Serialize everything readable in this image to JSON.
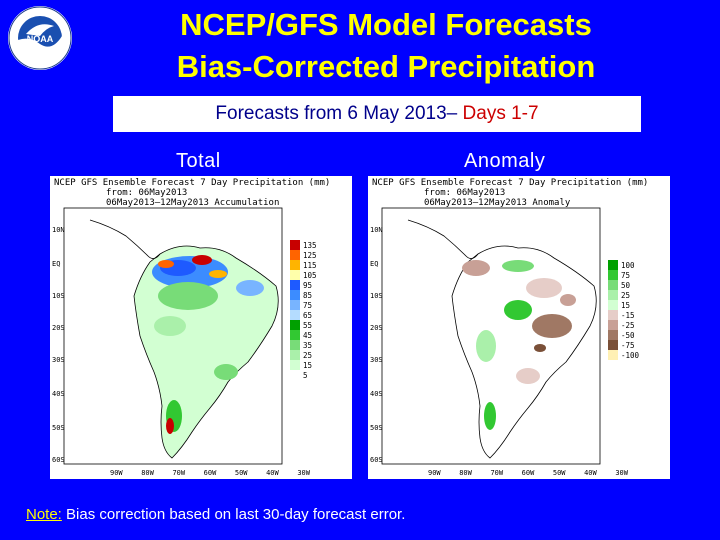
{
  "title": {
    "line1": "NCEP/GFS Model Forecasts",
    "line2": "Bias-Corrected Precipitation"
  },
  "subtitle": {
    "prefix": "Forecasts from 6 May 2013– ",
    "accent": "Days 1-7"
  },
  "labels": {
    "total": "Total",
    "anomaly": "Anomaly"
  },
  "total_panel": {
    "header": "NCEP GFS Ensemble Forecast  7 Day Precipitation (mm)",
    "from_line": "from: 06May2013",
    "period": "06May2013–12May2013  Accumulation",
    "legend_values": [
      "135",
      "125",
      "115",
      "105",
      "95",
      "85",
      "75",
      "65",
      "55",
      "45",
      "35",
      "25",
      "15",
      "5"
    ],
    "legend_colors": [
      "#c80000",
      "#ff6400",
      "#ffb400",
      "#ffffaa",
      "#1e5aff",
      "#3c8cff",
      "#78b4ff",
      "#b4dcff",
      "#00a000",
      "#32c832",
      "#78dc78",
      "#aaf0aa",
      "#d2ffd2",
      "#ffffff"
    ]
  },
  "anomaly_panel": {
    "header": "NCEP GFS Ensemble Forecast  7 Day Precipitation (mm)",
    "from_line": "from: 06May2013",
    "period": "06May2013–12May2013  Anomaly",
    "legend_values": [
      "100",
      "75",
      "50",
      "25",
      "15",
      "-15",
      "-25",
      "-50",
      "-75",
      "-100"
    ],
    "legend_colors": [
      "#00a000",
      "#32c832",
      "#78dc78",
      "#aaf0aa",
      "#d2ffd2",
      "#e6cdc8",
      "#c8a096",
      "#a07864",
      "#7a5038",
      "#fff0b4"
    ]
  },
  "map_axes": {
    "lat": [
      "10N",
      "EQ",
      "10S",
      "20S",
      "30S",
      "40S",
      "50S",
      "60S"
    ],
    "lon": [
      "90W",
      "80W",
      "70W",
      "60W",
      "50W",
      "40W",
      "30W"
    ]
  },
  "note": {
    "label": "Note:",
    "text": " Bias correction based on last 30-day forecast error."
  },
  "logo": {
    "text": "NOAA",
    "ring_text": "NATIONAL OCEANIC AND ATMOSPHERIC ADMINISTRATION • U.S. DEPARTMENT OF COMMERCE"
  },
  "colors": {
    "background": "#0000ff",
    "title": "#ffff00",
    "accent": "#cc0000"
  }
}
